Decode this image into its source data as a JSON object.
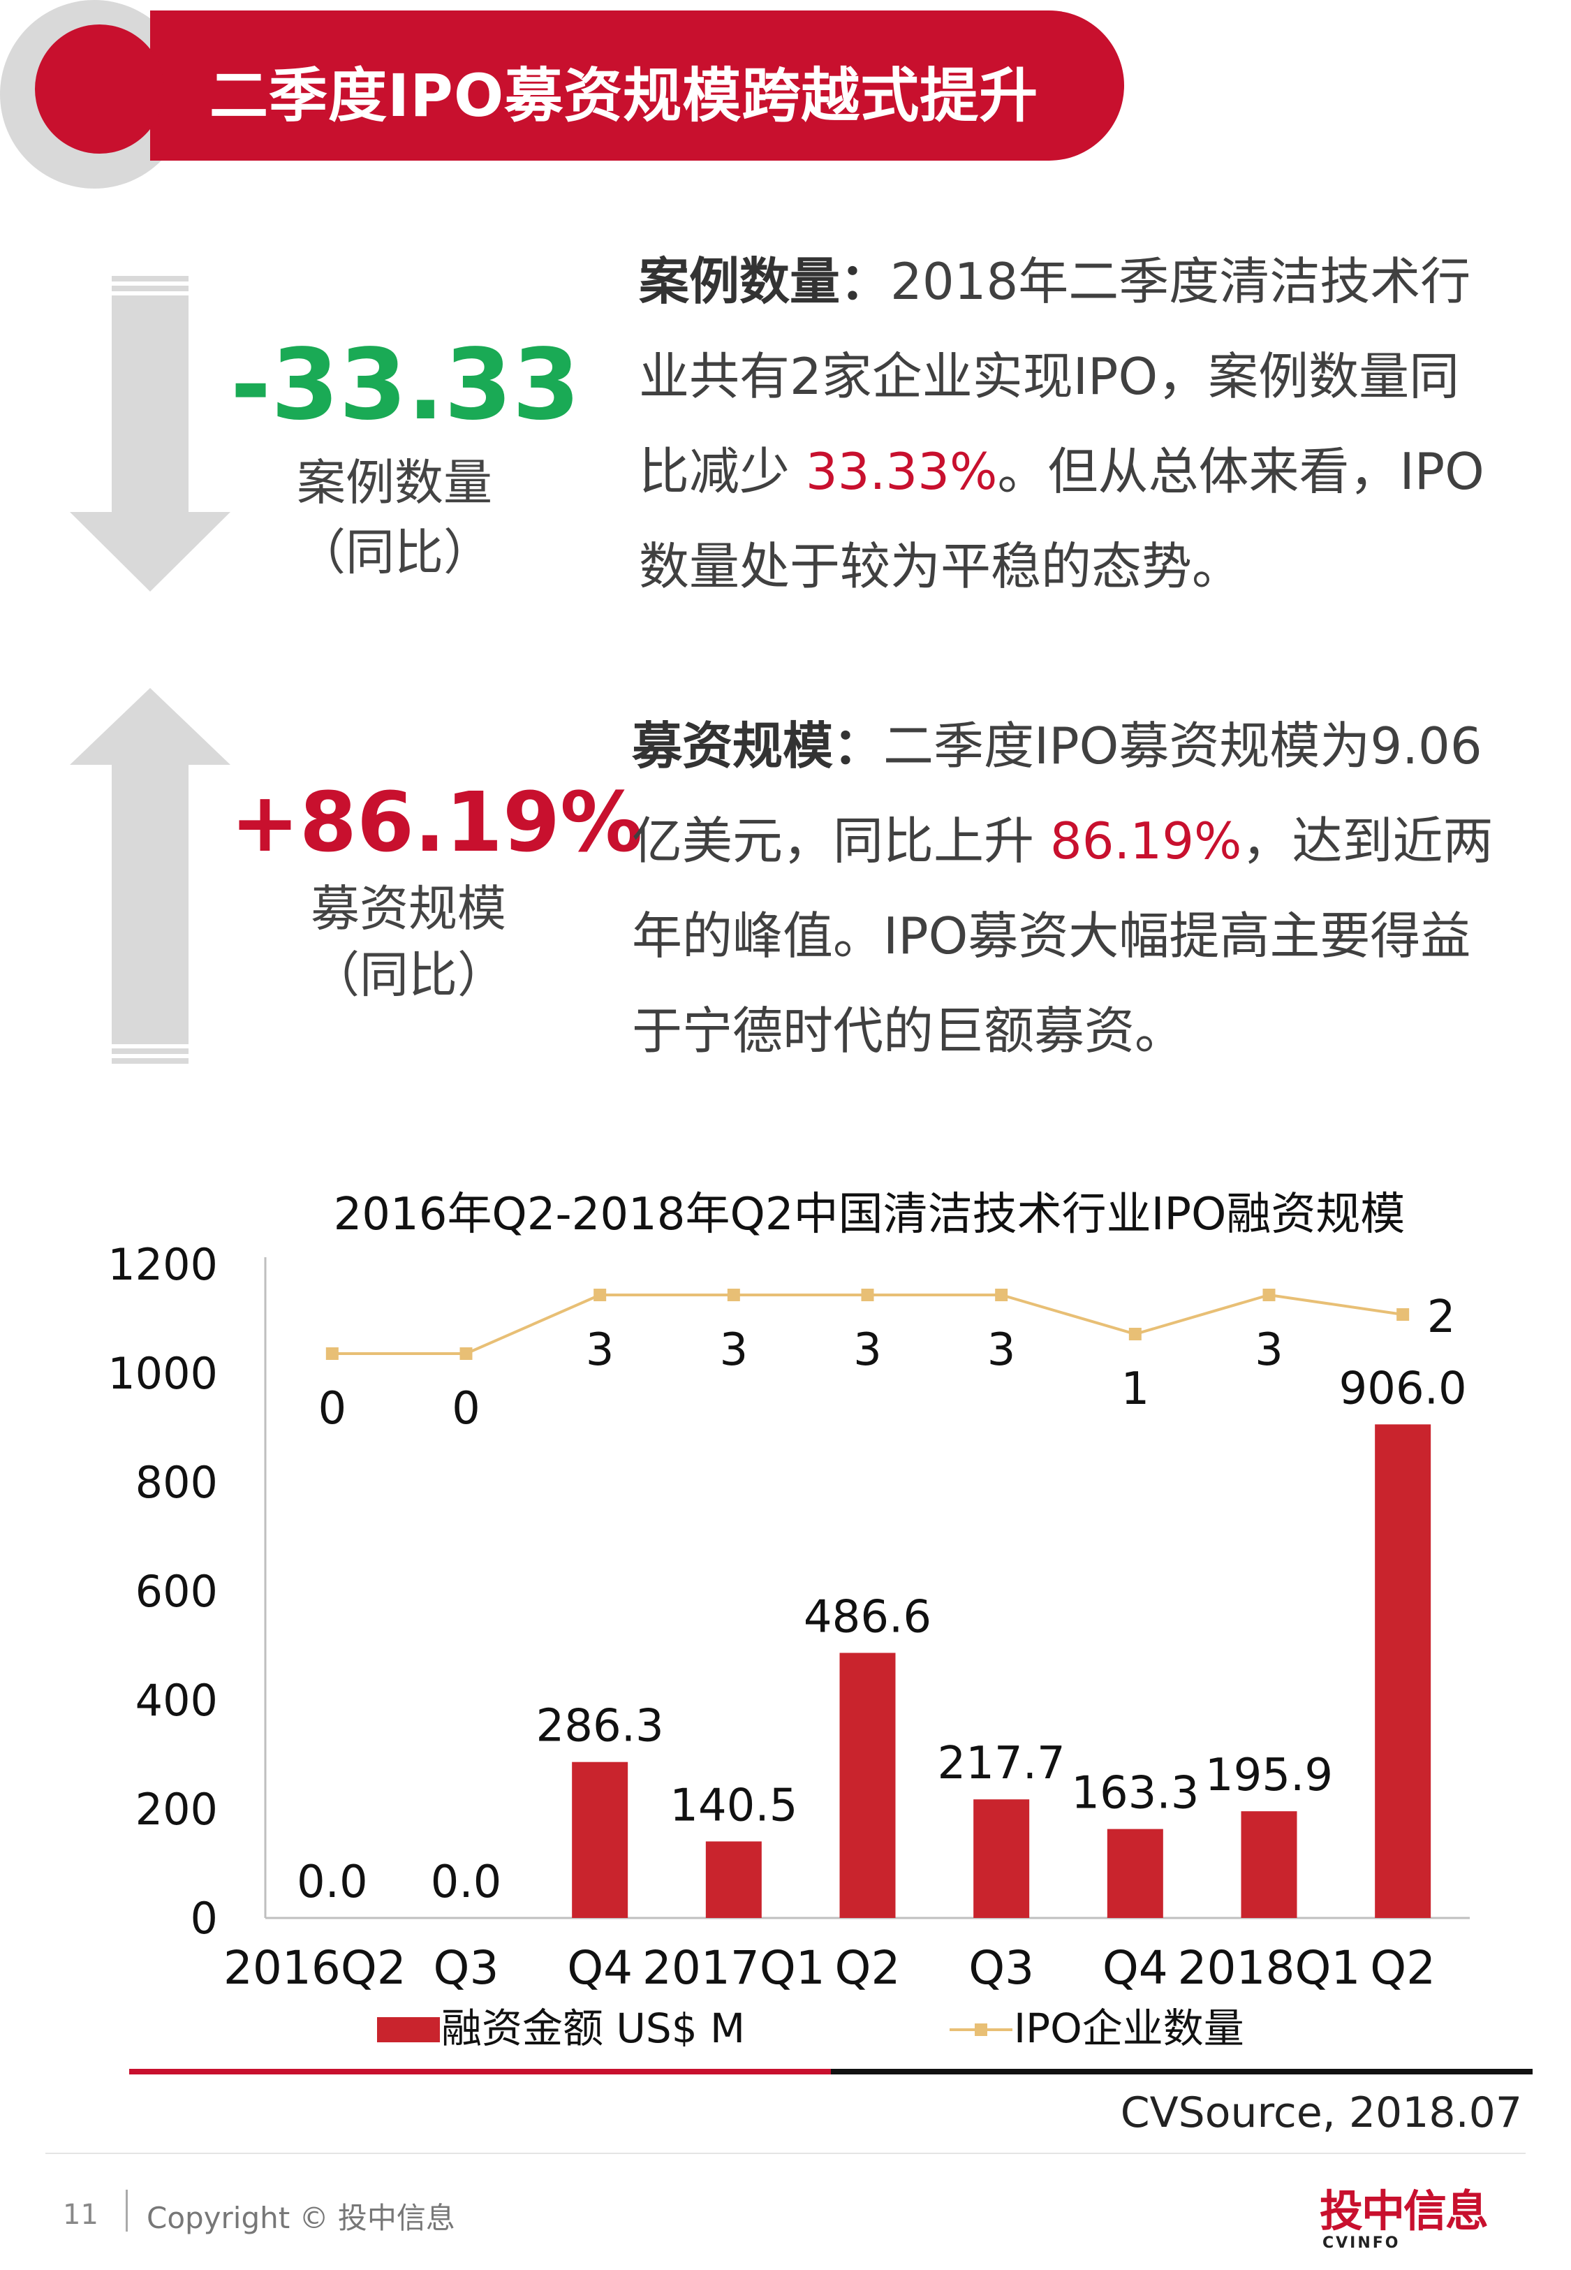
{
  "header": {
    "title": "二季度IPO募资规模跨越式提升"
  },
  "stat_cases": {
    "value": "-33.33",
    "label": "案例数量",
    "sub": "（同比）",
    "color": "#1aaa55",
    "direction": "down"
  },
  "stat_funds": {
    "value": "+86.19%",
    "label": "募资规模",
    "sub": "（同比）",
    "color": "#c8102e",
    "direction": "up"
  },
  "para_cases": {
    "lead": "案例数量：",
    "text1": "2018年二季度清洁技术行业共有2家企业实现IPO，案例数量同比减少",
    "highlight": "33.33%",
    "text2": "。但从总体来看，IPO数量处于较为平稳的态势。"
  },
  "para_funds": {
    "lead": "募资规模：",
    "text1": "二季度IPO募资规模为9.06亿美元，同比上升",
    "highlight": "86.19%",
    "text2": "，达到近两年的峰值。IPO募资大幅提高主要得益于宁德时代的巨额募资。"
  },
  "chart_data": {
    "type": "bar",
    "title": "2016年Q2-2018年Q2中国清洁技术行业IPO融资规模",
    "categories": [
      "2016Q2",
      "Q3",
      "Q4",
      "2017Q1",
      "Q2",
      "Q3",
      "Q4",
      "2018Q1",
      "Q2"
    ],
    "series": [
      {
        "name": "融资金额 US$ M",
        "type": "bar",
        "color": "#c9242d",
        "values": [
          0.0,
          0.0,
          286.3,
          140.5,
          486.6,
          217.7,
          163.3,
          195.9,
          906.0
        ],
        "labels": [
          "0.0",
          "0.0",
          "286.3",
          "140.5",
          "486.6",
          "217.7",
          "163.3",
          "195.9",
          "906.0"
        ]
      },
      {
        "name": "IPO企业数量",
        "type": "line",
        "color": "#e8bf75",
        "values": [
          0,
          0,
          3,
          3,
          3,
          3,
          1,
          3,
          2
        ],
        "labels": [
          "0",
          "0",
          "3",
          "3",
          "3",
          "3",
          "1",
          "3",
          "2"
        ]
      }
    ],
    "yticks": [
      "0",
      "200",
      "400",
      "600",
      "800",
      "1000",
      "1200"
    ],
    "ylim": [
      0,
      1200
    ],
    "legend_position": "bottom",
    "grid": false
  },
  "source": "CVSource, 2018.07",
  "footer": {
    "page_number": "11",
    "copyright": "Copyright © 投中信息",
    "logo_main": "投中信息",
    "logo_sub": "CVINFO"
  }
}
